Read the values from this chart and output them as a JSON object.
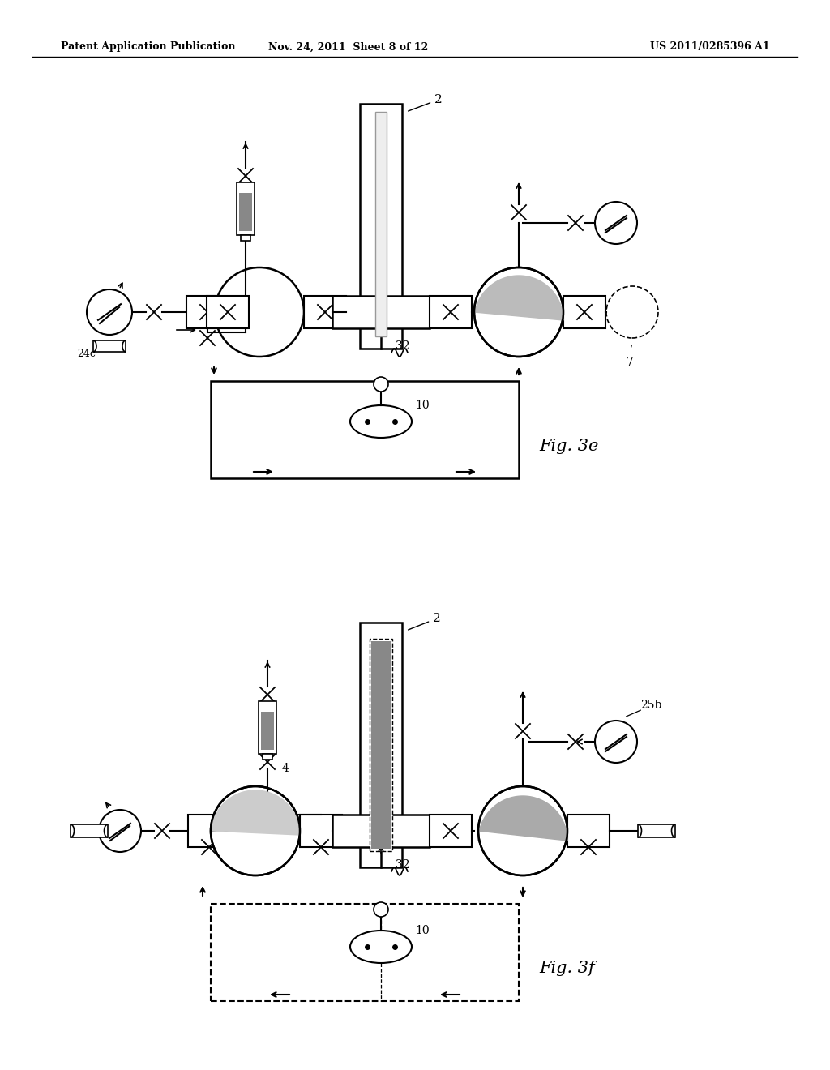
{
  "background_color": "#ffffff",
  "header_left": "Patent Application Publication",
  "header_center": "Nov. 24, 2011  Sheet 8 of 12",
  "header_right": "US 2011/0285396 A1",
  "fig3e_label": "Fig. 3e",
  "fig3f_label": "Fig. 3f",
  "label_2_top": "2",
  "label_32_3e": "32",
  "label_10_3e": "10",
  "label_7": "7",
  "label_24c": "24c",
  "label_2_bot": "2",
  "label_32_3f": "32",
  "label_10_3f": "10",
  "label_4": "4",
  "label_25b": "25b"
}
